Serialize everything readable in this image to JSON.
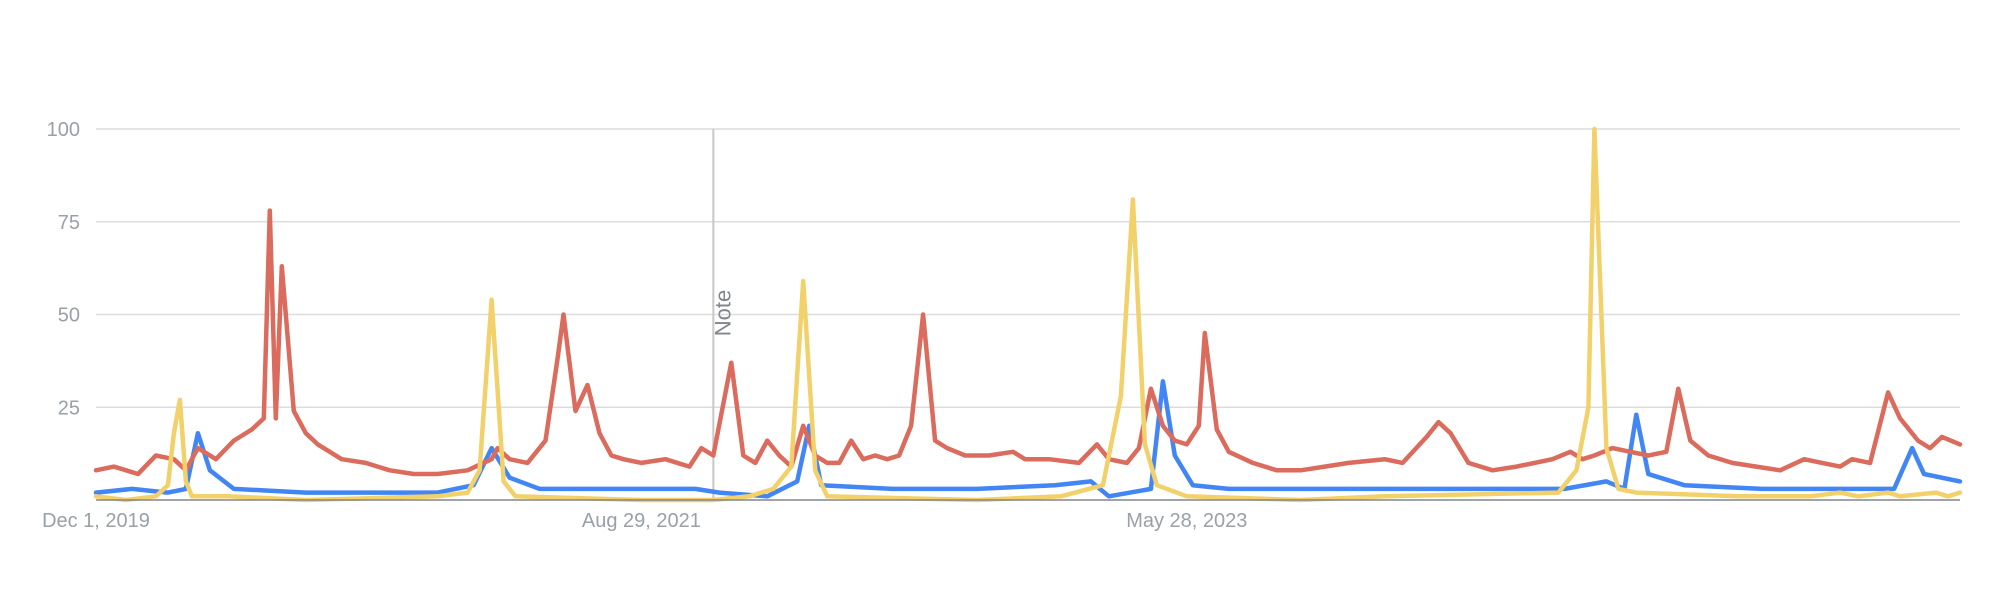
{
  "chart_data": {
    "type": "line",
    "title": "",
    "xlabel": "",
    "ylabel": "",
    "ylim": [
      0,
      100
    ],
    "yticks": [
      25,
      50,
      75,
      100
    ],
    "xticks": [
      {
        "label": "Dec 1, 2019",
        "date": "2019-12-01"
      },
      {
        "label": "Aug 29, 2021",
        "date": "2021-08-29"
      },
      {
        "label": "May 28, 2023",
        "date": "2023-05-28"
      }
    ],
    "xrange": [
      "2019-12-01",
      "2025-11-16"
    ],
    "grid": true,
    "annotation": {
      "label": "Note",
      "date": "2021-11-21"
    },
    "series": [
      {
        "color": "#4285f4",
        "points": [
          [
            "2019-12-01",
            2
          ],
          [
            "2020-01-12",
            3
          ],
          [
            "2020-02-23",
            2
          ],
          [
            "2020-03-15",
            3
          ],
          [
            "2020-03-29",
            18
          ],
          [
            "2020-04-12",
            8
          ],
          [
            "2020-05-10",
            3
          ],
          [
            "2020-08-02",
            2
          ],
          [
            "2021-01-03",
            2
          ],
          [
            "2021-02-14",
            4
          ],
          [
            "2021-03-07",
            14
          ],
          [
            "2021-03-28",
            6
          ],
          [
            "2021-05-02",
            3
          ],
          [
            "2021-08-29",
            3
          ],
          [
            "2021-10-31",
            3
          ],
          [
            "2021-11-28",
            2
          ],
          [
            "2022-01-23",
            1
          ],
          [
            "2022-02-27",
            5
          ],
          [
            "2022-03-13",
            20
          ],
          [
            "2022-03-27",
            4
          ],
          [
            "2022-06-19",
            3
          ],
          [
            "2022-09-25",
            3
          ],
          [
            "2022-12-25",
            4
          ],
          [
            "2023-02-05",
            5
          ],
          [
            "2023-02-26",
            1
          ],
          [
            "2023-04-16",
            3
          ],
          [
            "2023-04-30",
            32
          ],
          [
            "2023-05-14",
            12
          ],
          [
            "2023-06-04",
            4
          ],
          [
            "2023-07-16",
            3
          ],
          [
            "2023-12-31",
            3
          ],
          [
            "2024-03-03",
            3
          ],
          [
            "2024-08-11",
            3
          ],
          [
            "2024-09-29",
            5
          ],
          [
            "2024-10-20",
            3
          ],
          [
            "2024-11-03",
            23
          ],
          [
            "2024-11-17",
            7
          ],
          [
            "2024-12-29",
            4
          ],
          [
            "2025-03-30",
            3
          ],
          [
            "2025-06-22",
            3
          ],
          [
            "2025-08-31",
            3
          ],
          [
            "2025-09-21",
            14
          ],
          [
            "2025-10-05",
            7
          ],
          [
            "2025-11-16",
            5
          ]
        ]
      },
      {
        "color": "#db6b5c",
        "points": [
          [
            "2019-12-01",
            8
          ],
          [
            "2019-12-22",
            9
          ],
          [
            "2020-01-19",
            7
          ],
          [
            "2020-02-09",
            12
          ],
          [
            "2020-03-01",
            11
          ],
          [
            "2020-03-15",
            8
          ],
          [
            "2020-03-29",
            14
          ],
          [
            "2020-04-19",
            11
          ],
          [
            "2020-05-10",
            16
          ],
          [
            "2020-05-31",
            19
          ],
          [
            "2020-06-14",
            22
          ],
          [
            "2020-06-21",
            78
          ],
          [
            "2020-06-28",
            22
          ],
          [
            "2020-07-05",
            63
          ],
          [
            "2020-07-19",
            24
          ],
          [
            "2020-08-02",
            18
          ],
          [
            "2020-08-16",
            15
          ],
          [
            "2020-09-13",
            11
          ],
          [
            "2020-10-11",
            10
          ],
          [
            "2020-11-08",
            8
          ],
          [
            "2020-12-06",
            7
          ],
          [
            "2021-01-03",
            7
          ],
          [
            "2021-02-07",
            8
          ],
          [
            "2021-03-07",
            11
          ],
          [
            "2021-03-14",
            14
          ],
          [
            "2021-03-28",
            11
          ],
          [
            "2021-04-18",
            10
          ],
          [
            "2021-05-09",
            16
          ],
          [
            "2021-05-23",
            38
          ],
          [
            "2021-05-30",
            50
          ],
          [
            "2021-06-13",
            24
          ],
          [
            "2021-06-27",
            31
          ],
          [
            "2021-07-11",
            18
          ],
          [
            "2021-07-25",
            12
          ],
          [
            "2021-08-08",
            11
          ],
          [
            "2021-08-29",
            10
          ],
          [
            "2021-09-26",
            11
          ],
          [
            "2021-10-24",
            9
          ],
          [
            "2021-11-07",
            14
          ],
          [
            "2021-11-21",
            12
          ],
          [
            "2021-12-12",
            37
          ],
          [
            "2021-12-26",
            12
          ],
          [
            "2022-01-09",
            10
          ],
          [
            "2022-01-23",
            16
          ],
          [
            "2022-02-06",
            12
          ],
          [
            "2022-02-20",
            9
          ],
          [
            "2022-03-06",
            20
          ],
          [
            "2022-03-20",
            12
          ],
          [
            "2022-04-03",
            10
          ],
          [
            "2022-04-17",
            10
          ],
          [
            "2022-05-01",
            16
          ],
          [
            "2022-05-15",
            11
          ],
          [
            "2022-05-29",
            12
          ],
          [
            "2022-06-12",
            11
          ],
          [
            "2022-06-26",
            12
          ],
          [
            "2022-07-10",
            20
          ],
          [
            "2022-07-24",
            50
          ],
          [
            "2022-08-07",
            16
          ],
          [
            "2022-08-21",
            14
          ],
          [
            "2022-09-11",
            12
          ],
          [
            "2022-10-09",
            12
          ],
          [
            "2022-11-06",
            13
          ],
          [
            "2022-11-20",
            11
          ],
          [
            "2022-12-18",
            11
          ],
          [
            "2023-01-22",
            10
          ],
          [
            "2023-02-12",
            15
          ],
          [
            "2023-02-26",
            11
          ],
          [
            "2023-03-19",
            10
          ],
          [
            "2023-04-02",
            14
          ],
          [
            "2023-04-16",
            30
          ],
          [
            "2023-04-30",
            20
          ],
          [
            "2023-05-14",
            16
          ],
          [
            "2023-05-28",
            15
          ],
          [
            "2023-06-11",
            20
          ],
          [
            "2023-06-18",
            45
          ],
          [
            "2023-07-02",
            19
          ],
          [
            "2023-07-16",
            13
          ],
          [
            "2023-08-13",
            10
          ],
          [
            "2023-09-10",
            8
          ],
          [
            "2023-10-08",
            8
          ],
          [
            "2023-11-05",
            9
          ],
          [
            "2023-12-03",
            10
          ],
          [
            "2024-01-14",
            11
          ],
          [
            "2024-02-04",
            10
          ],
          [
            "2024-03-03",
            17
          ],
          [
            "2024-03-17",
            21
          ],
          [
            "2024-03-31",
            18
          ],
          [
            "2024-04-21",
            10
          ],
          [
            "2024-05-19",
            8
          ],
          [
            "2024-06-16",
            9
          ],
          [
            "2024-07-07",
            10
          ],
          [
            "2024-07-28",
            11
          ],
          [
            "2024-08-18",
            13
          ],
          [
            "2024-09-01",
            11
          ],
          [
            "2024-09-15",
            12
          ],
          [
            "2024-10-06",
            14
          ],
          [
            "2024-10-27",
            13
          ],
          [
            "2024-11-17",
            12
          ],
          [
            "2024-12-08",
            13
          ],
          [
            "2024-12-22",
            30
          ],
          [
            "2025-01-05",
            16
          ],
          [
            "2025-01-26",
            12
          ],
          [
            "2025-02-23",
            10
          ],
          [
            "2025-03-23",
            9
          ],
          [
            "2025-04-20",
            8
          ],
          [
            "2025-05-18",
            11
          ],
          [
            "2025-06-08",
            10
          ],
          [
            "2025-06-29",
            9
          ],
          [
            "2025-07-13",
            11
          ],
          [
            "2025-08-03",
            10
          ],
          [
            "2025-08-24",
            29
          ],
          [
            "2025-09-07",
            22
          ],
          [
            "2025-09-28",
            16
          ],
          [
            "2025-10-12",
            14
          ],
          [
            "2025-10-26",
            17
          ],
          [
            "2025-11-16",
            15
          ]
        ]
      },
      {
        "color": "#f2d16b",
        "points": [
          [
            "2019-12-01",
            1
          ],
          [
            "2020-01-05",
            0
          ],
          [
            "2020-02-09",
            1
          ],
          [
            "2020-02-23",
            4
          ],
          [
            "2020-03-01",
            18
          ],
          [
            "2020-03-08",
            27
          ],
          [
            "2020-03-15",
            5
          ],
          [
            "2020-03-22",
            1
          ],
          [
            "2020-05-03",
            1
          ],
          [
            "2020-08-02",
            0
          ],
          [
            "2021-01-03",
            1
          ],
          [
            "2021-02-07",
            2
          ],
          [
            "2021-02-21",
            8
          ],
          [
            "2021-03-07",
            54
          ],
          [
            "2021-03-21",
            5
          ],
          [
            "2021-04-04",
            1
          ],
          [
            "2021-08-29",
            0
          ],
          [
            "2021-11-21",
            0
          ],
          [
            "2022-01-02",
            1
          ],
          [
            "2022-01-30",
            3
          ],
          [
            "2022-02-20",
            9
          ],
          [
            "2022-03-06",
            59
          ],
          [
            "2022-03-20",
            8
          ],
          [
            "2022-04-03",
            1
          ],
          [
            "2022-09-25",
            0
          ],
          [
            "2023-01-01",
            1
          ],
          [
            "2023-02-19",
            4
          ],
          [
            "2023-03-12",
            28
          ],
          [
            "2023-03-26",
            81
          ],
          [
            "2023-04-09",
            15
          ],
          [
            "2023-04-23",
            4
          ],
          [
            "2023-05-28",
            1
          ],
          [
            "2023-10-08",
            0
          ],
          [
            "2024-01-14",
            1
          ],
          [
            "2024-08-04",
            2
          ],
          [
            "2024-08-25",
            8
          ],
          [
            "2024-09-08",
            25
          ],
          [
            "2024-09-15",
            100
          ],
          [
            "2024-09-29",
            14
          ],
          [
            "2024-10-13",
            3
          ],
          [
            "2024-11-03",
            2
          ],
          [
            "2025-03-02",
            1
          ],
          [
            "2025-05-25",
            1
          ],
          [
            "2025-06-29",
            2
          ],
          [
            "2025-07-20",
            1
          ],
          [
            "2025-08-24",
            2
          ],
          [
            "2025-09-07",
            1
          ],
          [
            "2025-10-19",
            2
          ],
          [
            "2025-11-02",
            1
          ],
          [
            "2025-11-16",
            2
          ]
        ]
      }
    ]
  }
}
